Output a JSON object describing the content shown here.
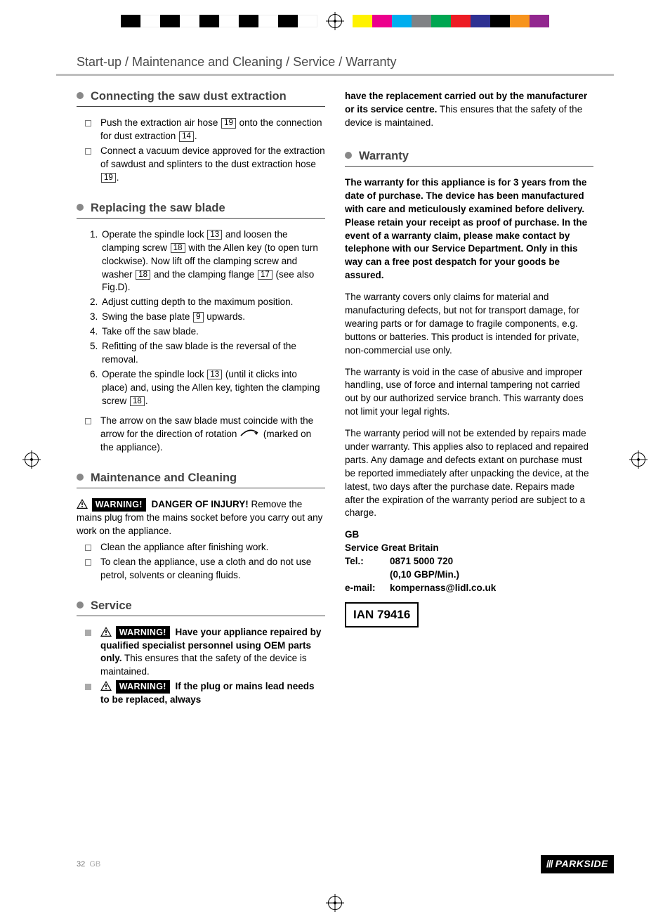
{
  "regmarks": {
    "left_colors": [
      "#000000",
      "#ffffff",
      "#000000",
      "#ffffff",
      "#000000",
      "#ffffff",
      "#000000",
      "#ffffff",
      "#000000",
      "#ffffff"
    ],
    "right_colors": [
      "#fff200",
      "#ec008c",
      "#00aeef",
      "#808285",
      "#00a651",
      "#ed1c24",
      "#2e3192",
      "#000000",
      "#f7941d",
      "#92278f"
    ]
  },
  "header": "Start-up / Maintenance and Cleaning / Service / Warranty",
  "s1": {
    "title": "Connecting the saw dust extraction",
    "i1a": "Push the extraction air hose ",
    "i1b": " onto the connection for dust extraction ",
    "i1c": ".",
    "r19": "19",
    "r14": "14",
    "i2a": "Connect a vacuum device approved for the extraction of sawdust and splinters to the dust extraction hose ",
    "i2b": "."
  },
  "s2": {
    "title": "Replacing the saw blade",
    "n1a": "Operate the spindle lock ",
    "r13": "13",
    "n1b": " and loosen the clamping screw ",
    "r18": "18",
    "n1c": " with the Allen key (to open turn clockwise). Now lift off the clamping screw and washer ",
    "n1d": " and the clamping flange ",
    "r17": "17",
    "n1e": " (see also Fig.D).",
    "n2": "Adjust cutting depth to the maximum position.",
    "n3a": "Swing the base plate ",
    "r9": "9",
    "n3b": " upwards.",
    "n4": "Take off the saw blade.",
    "n5": "Refitting of the saw blade is the reversal of the removal.",
    "n6a": "Operate the spindle lock ",
    "n6b": " (until it clicks into place) and, using the Allen key, tighten the clamping screw ",
    "n6c": ".",
    "note": "The arrow on the saw blade must coincide with the arrow for the direction of rotation ",
    "note2": " (marked on the appliance)."
  },
  "s3": {
    "title": "Maintenance and Cleaning",
    "warn": "WARNING!",
    "lead": " DANGER OF INJURY!",
    "body": " Remove the mains plug from the mains socket before you carry out any work on the appliance.",
    "i1": "Clean the appliance after finishing work.",
    "i2": "To clean the appliance, use a cloth and do not use petrol, solvents or cleaning fluids."
  },
  "s4": {
    "title": "Service",
    "w": "WARNING!",
    "b1a": " Have your appliance repaired by qualified specialist personnel using OEM parts only.",
    "b1b": " This ensures that the safety of the device is maintained.",
    "b2a": " If the plug or mains lead needs to be replaced, always",
    "b2b_top": "have the replacement carried out by the manufacturer or its service centre.",
    "b2c": " This ensures that the safety of the device is maintained."
  },
  "s5": {
    "title": "Warranty",
    "p1": "The warranty for this appliance is for 3 years from the date of purchase. The device has been manufactured with care and meticulously examined before delivery. Please retain your receipt as proof of purchase. In the event of a warranty claim, please make contact by telephone with our Service Department. Only in this way can a free post despatch for your goods be assured.",
    "p2": "The warranty covers only claims for material and manufacturing defects, but not for transport damage, for wearing parts or for damage to fragile components, e.g. buttons or batteries. This product is intended for private, non-commercial use only.",
    "p3": "The warranty is void in the case of abusive and improper handling, use of force and internal tampering not carried out by our authorized service branch. This warranty does not limit your legal rights.",
    "p4": "The warranty period will not be extended by repairs made under warranty. This applies also to replaced and repaired parts. Any damage and defects extant on purchase must be reported immediately after unpacking the device, at the latest, two days after the purchase date. Repairs made after the expiration of the warranty period are subject to a charge."
  },
  "contact": {
    "country": "GB",
    "svc": "Service Great Britain",
    "tel_l": "Tel.:",
    "tel": "0871 5000 720",
    "rate": "(0,10 GBP/Min.)",
    "email_l": "e-mail:",
    "email": "kompernass@lidl.co.uk",
    "ian": "IAN 79416"
  },
  "footer": {
    "page": "32",
    "cc": "GB",
    "brand": "PARKSIDE"
  }
}
